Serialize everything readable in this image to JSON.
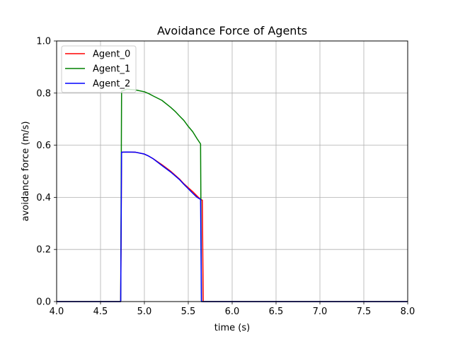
{
  "chart_data": {
    "type": "line",
    "title": "Avoidance Force of Agents",
    "xlabel": "time (s)",
    "ylabel": "avoidance force (m/s)",
    "xlim": [
      4.0,
      8.0
    ],
    "ylim": [
      0.0,
      1.0
    ],
    "xticks": [
      4.0,
      4.5,
      5.0,
      5.5,
      6.0,
      6.5,
      7.0,
      7.5,
      8.0
    ],
    "xtick_labels": [
      "4.0",
      "4.5",
      "5.0",
      "5.5",
      "6.0",
      "6.5",
      "7.0",
      "7.5",
      "8.0"
    ],
    "yticks": [
      0.0,
      0.2,
      0.4,
      0.6,
      0.8,
      1.0
    ],
    "ytick_labels": [
      "0.0",
      "0.2",
      "0.4",
      "0.6",
      "0.8",
      "1.0"
    ],
    "grid": true,
    "legend_position": "top-left",
    "series": [
      {
        "name": "Agent_0",
        "color": "#ff0000",
        "x": [
          4.0,
          4.73,
          4.74,
          4.8,
          4.9,
          5.0,
          5.05,
          5.1,
          5.2,
          5.3,
          5.4,
          5.45,
          5.5,
          5.55,
          5.6,
          5.63,
          5.66,
          5.67,
          6.0,
          8.0
        ],
        "y": [
          0.0,
          0.0,
          0.573,
          0.574,
          0.573,
          0.566,
          0.558,
          0.548,
          0.525,
          0.5,
          0.47,
          0.452,
          0.437,
          0.422,
          0.405,
          0.395,
          0.389,
          0.0,
          0.0,
          0.0
        ]
      },
      {
        "name": "Agent_1",
        "color": "#008000",
        "x": [
          4.0,
          4.73,
          4.74,
          4.8,
          4.9,
          5.0,
          5.05,
          5.1,
          5.2,
          5.3,
          5.35,
          5.4,
          5.45,
          5.5,
          5.55,
          5.6,
          5.64,
          5.65,
          6.0,
          8.0
        ],
        "y": [
          0.0,
          0.0,
          0.807,
          0.815,
          0.812,
          0.805,
          0.798,
          0.789,
          0.772,
          0.745,
          0.73,
          0.712,
          0.695,
          0.672,
          0.652,
          0.625,
          0.605,
          0.0,
          0.0,
          0.0
        ]
      },
      {
        "name": "Agent_2",
        "color": "#0000ff",
        "x": [
          4.0,
          4.73,
          4.74,
          4.8,
          4.9,
          5.0,
          5.05,
          5.1,
          5.2,
          5.3,
          5.4,
          5.45,
          5.5,
          5.55,
          5.6,
          5.64,
          5.65,
          6.0,
          8.0
        ],
        "y": [
          0.0,
          0.0,
          0.573,
          0.574,
          0.573,
          0.566,
          0.558,
          0.548,
          0.522,
          0.497,
          0.468,
          0.45,
          0.433,
          0.416,
          0.4,
          0.392,
          0.0,
          0.0,
          0.0
        ]
      }
    ]
  }
}
